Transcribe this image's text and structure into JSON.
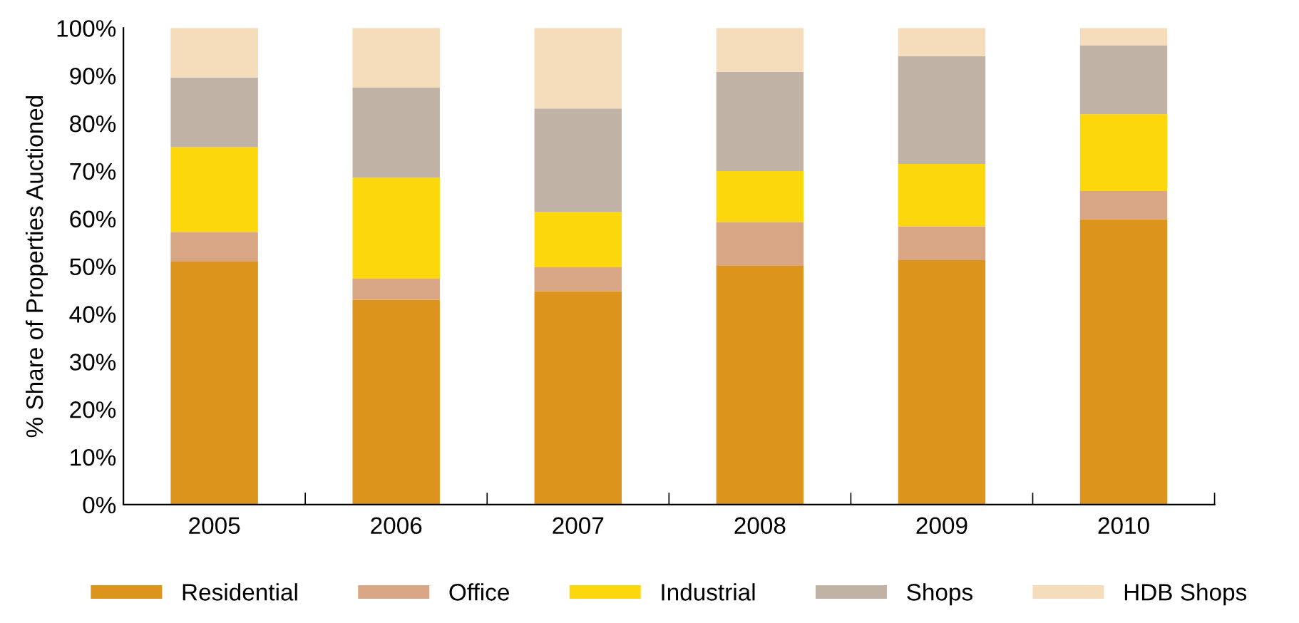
{
  "chart_data": {
    "type": "bar",
    "stacked": true,
    "ylabel": "% Share of Properties Auctioned",
    "categories": [
      "2005",
      "2006",
      "2007",
      "2008",
      "2009",
      "2010"
    ],
    "series": [
      {
        "name": "Residential",
        "color": "#dc941c",
        "values": [
          51.0,
          43.0,
          44.8,
          50.1,
          51.3,
          59.9
        ]
      },
      {
        "name": "Office",
        "color": "#d8a585",
        "values": [
          6.2,
          4.4,
          5.0,
          9.2,
          7.1,
          5.9
        ]
      },
      {
        "name": "Industrial",
        "color": "#fcd70c",
        "values": [
          17.8,
          21.2,
          11.6,
          10.7,
          13.1,
          16.1
        ]
      },
      {
        "name": "Shops",
        "color": "#c0b2a5",
        "values": [
          14.6,
          18.9,
          21.7,
          20.8,
          22.6,
          14.5
        ]
      },
      {
        "name": "HDB Shops",
        "color": "#f5dcbb",
        "values": [
          10.4,
          12.5,
          16.9,
          9.2,
          5.9,
          3.6
        ]
      }
    ],
    "ylim": [
      0,
      100
    ],
    "yticks": [
      {
        "value": 0,
        "label": "0%"
      },
      {
        "value": 10,
        "label": "10%"
      },
      {
        "value": 20,
        "label": "20%"
      },
      {
        "value": 30,
        "label": "30%"
      },
      {
        "value": 40,
        "label": "40%"
      },
      {
        "value": 50,
        "label": "50%"
      },
      {
        "value": 60,
        "label": "60%"
      },
      {
        "value": 70,
        "label": "70%"
      },
      {
        "value": 80,
        "label": "80%"
      },
      {
        "value": 90,
        "label": "90%"
      },
      {
        "value": 100,
        "label": "100%"
      }
    ],
    "grid": false,
    "legend": "bottom"
  }
}
